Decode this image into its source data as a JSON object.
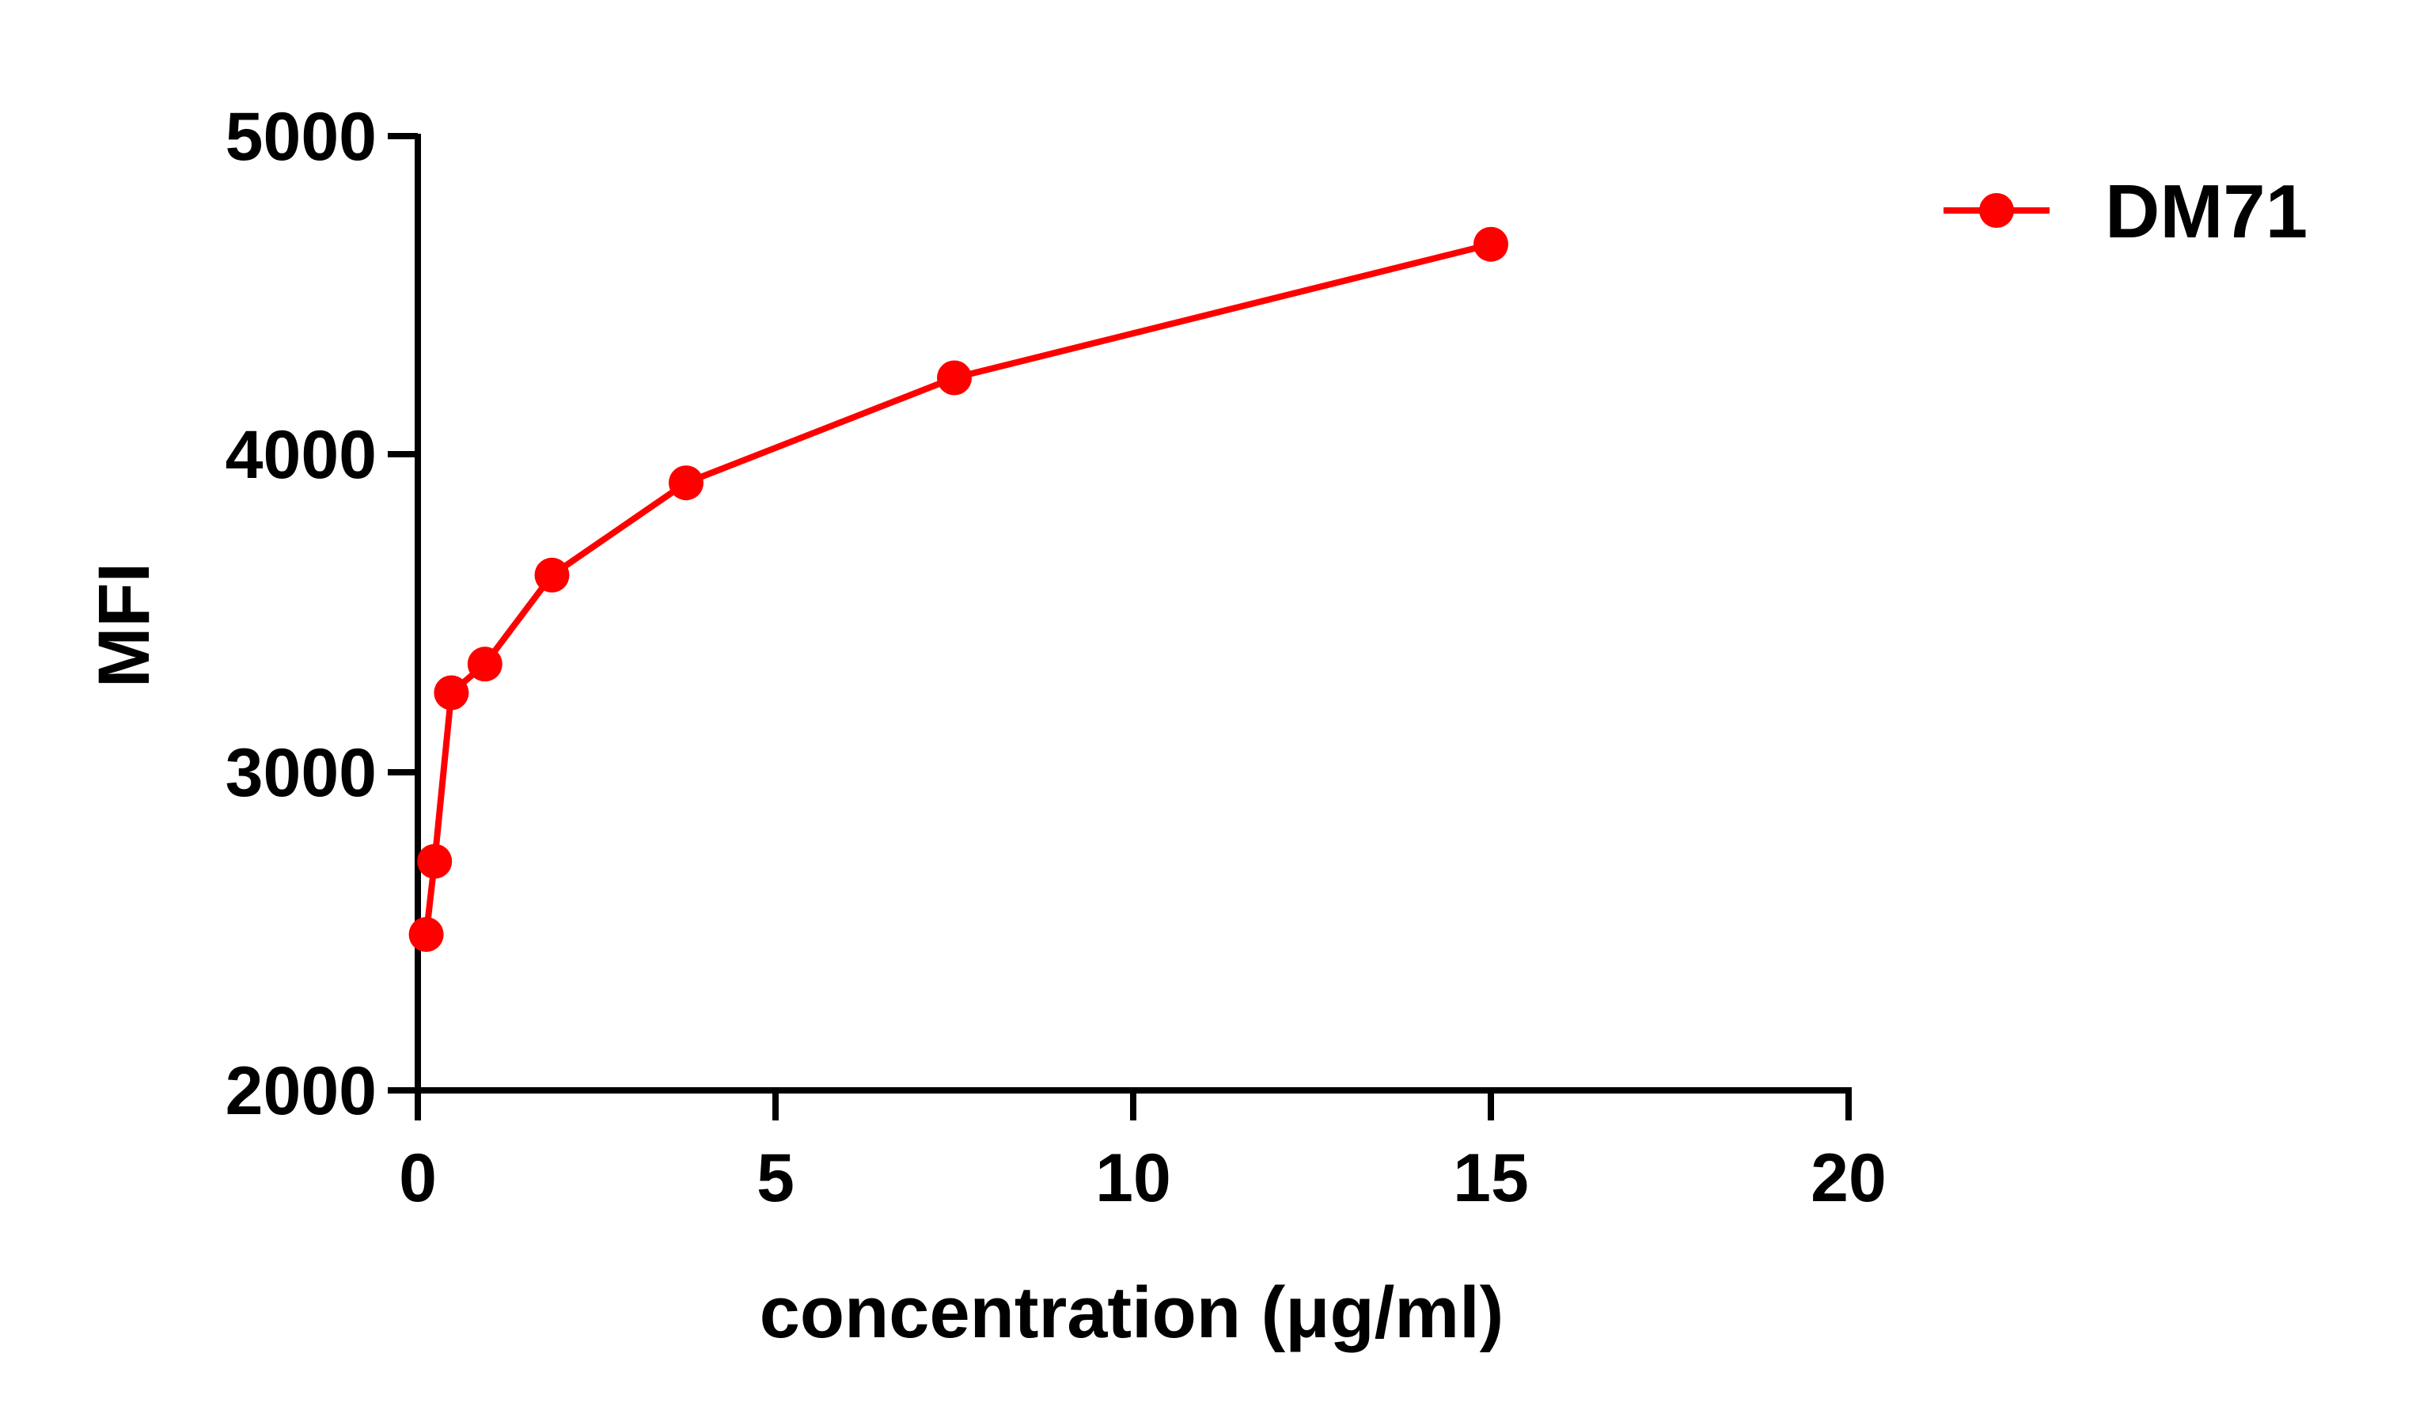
{
  "chart_data": {
    "type": "line",
    "title": "",
    "xlabel": "concentration (μg/ml)",
    "ylabel": "MFI",
    "xlim": [
      0,
      20
    ],
    "ylim": [
      2000,
      5000
    ],
    "x_ticks": [
      "0",
      "5",
      "10",
      "15",
      "20"
    ],
    "y_ticks": [
      "2000",
      "3000",
      "4000",
      "5000"
    ],
    "grid": false,
    "legend_position": "top-right",
    "series": [
      {
        "name": "DM71",
        "color": "#ff0000",
        "marker": "circle",
        "x": [
          0.117,
          0.234,
          0.469,
          0.938,
          1.875,
          3.75,
          7.5,
          15
        ],
        "y": [
          2490,
          2720,
          3250,
          3340,
          3620,
          3910,
          4240,
          4660
        ]
      }
    ]
  }
}
